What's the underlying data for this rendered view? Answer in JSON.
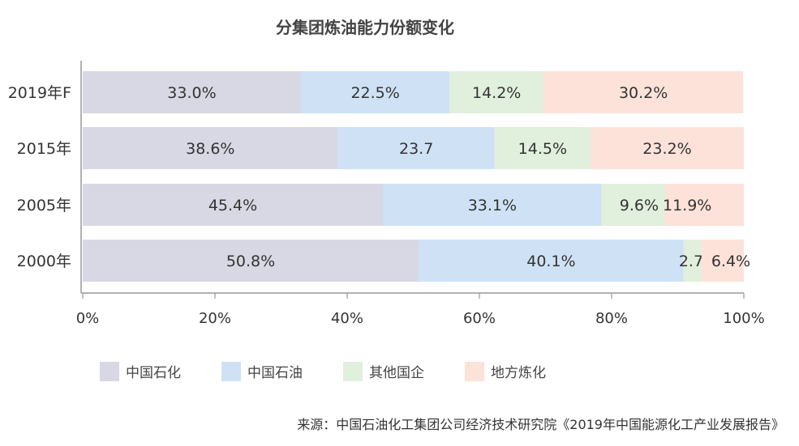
{
  "chart_data": {
    "type": "bar",
    "orientation": "horizontal",
    "stacked": true,
    "title": "分集团炼油能力份额变化",
    "categories": [
      "2019年F",
      "2015年",
      "2005年",
      "2000年"
    ],
    "series": [
      {
        "name": "中国石化",
        "color": "#d7d8e3",
        "values": [
          33.0,
          38.6,
          45.4,
          50.8
        ],
        "labels": [
          "33.0%",
          "38.6%",
          "45.4%",
          "50.8%"
        ]
      },
      {
        "name": "中国石油",
        "color": "#cfe2f5",
        "values": [
          22.5,
          23.7,
          33.1,
          40.1
        ],
        "labels": [
          "22.5%",
          "23.7",
          "33.1%",
          "40.1%"
        ]
      },
      {
        "name": "其他国企",
        "color": "#e1efdd",
        "values": [
          14.2,
          14.5,
          9.6,
          2.7
        ],
        "labels": [
          "14.2%",
          "14.5%",
          "9.6%",
          "2.7%"
        ]
      },
      {
        "name": "地方炼化",
        "color": "#fde2d9",
        "values": [
          30.2,
          23.2,
          11.9,
          6.4
        ],
        "labels": [
          "30.2%",
          "23.2%",
          "11.9%",
          "6.4%"
        ]
      }
    ],
    "xticks": [
      "0%",
      "20%",
      "40%",
      "60%",
      "80%",
      "100%"
    ],
    "xlim": [
      0,
      100
    ],
    "legend": "bottom",
    "grid": false
  },
  "source": "来源：中国石油化工集团公司经济技术研究院《2019年中国能源化工产业发展报告》"
}
